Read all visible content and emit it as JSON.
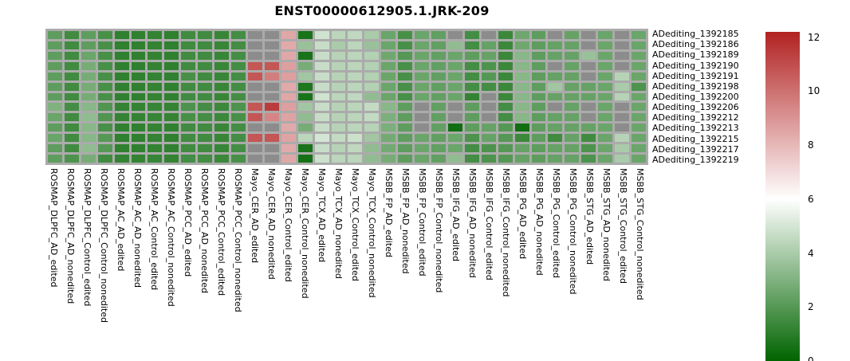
{
  "title": "ENST00000612905.1.JRK-209",
  "chart_data": {
    "type": "heatmap",
    "title": "ENST00000612905.1.JRK-209",
    "legend_position": "right",
    "grid": "cell-borders",
    "rows": [
      "ADediting_1392185",
      "ADediting_1392186",
      "ADediting_1392189",
      "ADediting_1392190",
      "ADediting_1392191",
      "ADediting_1392198",
      "ADediting_1392200",
      "ADediting_1392206",
      "ADediting_1392212",
      "ADediting_1392213",
      "ADediting_1392215",
      "ADediting_1392217",
      "ADediting_1392219"
    ],
    "columns": [
      "ROSMAP_DLPFC_AD_edited",
      "ROSMAP_DLPFC_AD_nonedited",
      "ROSMAP_DLPFC_Control_edited",
      "ROSMAP_DLPFC_Control_nonedited",
      "ROSMAP_AC_AD_edited",
      "ROSMAP_AC_AD_nonedited",
      "ROSMAP_AC_Control_edited",
      "ROSMAP_AC_Control_nonedited",
      "ROSMAP_PCC_AD_edited",
      "ROSMAP_PCC_AD_nonedited",
      "ROSMAP_PCC_Control_edited",
      "ROSMAP_PCC_Control_nonedited",
      "Mayo_CER_AD_edited",
      "Mayo_CER_AD_nonedited",
      "Mayo_CER_Control_edited",
      "Mayo_CER_Control_nonedited",
      "Mayo_TCX_AD_edited",
      "Mayo_TCX_AD_nonedited",
      "Mayo_TCX_Control_edited",
      "Mayo_TCX_Control_nonedited",
      "MSBB_FP_AD_edited",
      "MSBB_FP_AD_nonedited",
      "MSBB_FP_Control_edited",
      "MSBB_FP_Control_nonedited",
      "MSBB_IFG_AD_edited",
      "MSBB_IFG_AD_nonedited",
      "MSBB_IFG_Control_edited",
      "MSBB_IFG_Control_nonedited",
      "MSBB_PG_AD_edited",
      "MSBB_PG_AD_nonedited",
      "MSBB_PG_Control_edited",
      "MSBB_PG_Control_nonedited",
      "MSBB_STG_AD_edited",
      "MSBB_STG_AD_nonedited",
      "MSBB_STG_Control_edited",
      "MSBB_STG_Control_nonedited"
    ],
    "values": [
      [
        2.2,
        1.5,
        2.2,
        1.7,
        1.1,
        1.1,
        1.2,
        1.1,
        1.5,
        1.5,
        1.3,
        1.6,
        null,
        null,
        8.4,
        0.6,
        4.9,
        4.4,
        4.5,
        4.0,
        2.5,
        1.7,
        2.5,
        2.3,
        null,
        1.6,
        null,
        1.4,
        2.6,
        2.2,
        null,
        2.4,
        null,
        2.5,
        null,
        2.5
      ],
      [
        2.2,
        1.5,
        2.2,
        1.7,
        1.1,
        1.1,
        1.2,
        1.1,
        1.5,
        1.5,
        1.3,
        1.6,
        null,
        null,
        8.3,
        3.6,
        4.7,
        4.0,
        4.4,
        3.6,
        2.5,
        1.7,
        2.5,
        2.3,
        3.4,
        1.6,
        2.4,
        1.4,
        2.6,
        2.2,
        2.4,
        2.4,
        null,
        2.5,
        null,
        2.5
      ],
      [
        2.2,
        1.5,
        2.5,
        1.7,
        1.1,
        1.1,
        1.2,
        1.1,
        1.5,
        1.5,
        1.3,
        1.6,
        null,
        null,
        8.4,
        0.6,
        4.7,
        4.3,
        4.4,
        4.2,
        2.6,
        2.0,
        2.5,
        2.3,
        2.5,
        2.2,
        2.4,
        1.4,
        3.2,
        2.2,
        2.4,
        2.4,
        3.6,
        2.5,
        null,
        2.5
      ],
      [
        2.2,
        1.5,
        2.8,
        1.7,
        1.1,
        1.1,
        1.2,
        1.1,
        1.5,
        1.5,
        1.3,
        1.6,
        10.6,
        10.6,
        8.6,
        2.8,
        4.7,
        4.3,
        4.4,
        4.2,
        2.5,
        1.7,
        2.5,
        2.3,
        2.5,
        1.6,
        1.8,
        1.4,
        3.2,
        2.2,
        null,
        2.4,
        null,
        2.5,
        null,
        2.5
      ],
      [
        2.2,
        1.5,
        2.8,
        1.7,
        1.1,
        1.1,
        1.2,
        1.1,
        1.7,
        1.5,
        1.3,
        1.6,
        10.6,
        9.5,
        8.6,
        3.8,
        4.7,
        4.3,
        4.4,
        4.2,
        2.5,
        1.7,
        2.5,
        2.3,
        2.5,
        1.6,
        2.0,
        1.4,
        3.2,
        2.2,
        2.4,
        2.4,
        null,
        2.5,
        4.3,
        2.5
      ],
      [
        2.2,
        1.5,
        2.8,
        1.7,
        1.1,
        1.1,
        1.2,
        1.1,
        1.5,
        1.5,
        1.3,
        1.6,
        null,
        null,
        8.3,
        0.7,
        4.7,
        4.3,
        4.4,
        4.2,
        2.5,
        1.7,
        2.5,
        2.3,
        2.5,
        1.6,
        1.6,
        1.4,
        3.2,
        2.2,
        3.8,
        2.4,
        2.4,
        2.5,
        4.0,
        1.8
      ],
      [
        2.2,
        1.5,
        2.8,
        1.7,
        1.1,
        1.1,
        1.2,
        1.1,
        1.5,
        1.5,
        1.3,
        1.6,
        null,
        null,
        8.4,
        0.6,
        4.9,
        4.4,
        4.5,
        3.4,
        2.5,
        1.7,
        2.5,
        2.3,
        2.5,
        1.2,
        null,
        1.4,
        3.2,
        2.2,
        2.4,
        2.4,
        2.4,
        2.5,
        4.3,
        2.5
      ],
      [
        3.0,
        1.6,
        3.2,
        1.9,
        1.2,
        1.2,
        1.3,
        1.2,
        1.8,
        1.6,
        1.4,
        1.8,
        10.6,
        11.3,
        8.6,
        3.8,
        4.7,
        4.3,
        4.4,
        4.6,
        3.2,
        2.2,
        null,
        2.3,
        null,
        2.2,
        null,
        1.6,
        3.2,
        2.2,
        null,
        2.4,
        null,
        2.5,
        null,
        2.5
      ],
      [
        2.5,
        1.5,
        3.4,
        1.9,
        1.2,
        1.2,
        1.3,
        1.2,
        1.7,
        1.6,
        1.4,
        1.7,
        10.6,
        9.3,
        8.5,
        3.4,
        4.7,
        4.3,
        4.4,
        4.6,
        2.9,
        2.2,
        null,
        2.3,
        null,
        2.2,
        null,
        1.6,
        3.2,
        2.2,
        2.4,
        2.4,
        null,
        2.5,
        null,
        2.5
      ],
      [
        2.2,
        1.5,
        3.2,
        1.7,
        1.1,
        1.1,
        1.2,
        1.1,
        1.5,
        1.5,
        1.3,
        1.6,
        null,
        null,
        8.3,
        2.8,
        4.7,
        4.3,
        4.4,
        4.3,
        2.9,
        2.2,
        null,
        2.3,
        0.4,
        2.2,
        2.4,
        2.0,
        0.4,
        2.2,
        2.4,
        2.4,
        2.4,
        2.5,
        null,
        2.5
      ],
      [
        2.5,
        1.5,
        3.2,
        2.0,
        1.1,
        1.1,
        1.2,
        1.1,
        1.5,
        1.5,
        1.3,
        1.6,
        10.6,
        10.6,
        8.5,
        4.4,
        5.0,
        4.6,
        4.8,
        3.8,
        2.7,
        2.2,
        2.5,
        2.3,
        2.5,
        1.8,
        2.4,
        2.0,
        1.4,
        2.2,
        1.5,
        2.4,
        1.5,
        2.5,
        4.3,
        2.5
      ],
      [
        2.2,
        1.5,
        3.4,
        2.0,
        1.1,
        1.1,
        1.2,
        1.1,
        1.5,
        1.5,
        1.3,
        1.6,
        null,
        null,
        8.3,
        0.6,
        4.7,
        4.3,
        4.5,
        3.4,
        2.7,
        2.2,
        2.5,
        2.3,
        2.5,
        1.6,
        1.8,
        2.0,
        2.4,
        2.2,
        2.4,
        2.4,
        1.8,
        2.5,
        4.0,
        2.5
      ],
      [
        2.2,
        1.8,
        2.8,
        1.5,
        1.2,
        1.2,
        1.3,
        1.2,
        1.6,
        1.6,
        1.4,
        1.7,
        null,
        null,
        8.4,
        0.5,
        4.8,
        4.4,
        4.4,
        3.4,
        2.8,
        2.2,
        2.5,
        2.3,
        3.4,
        1.6,
        1.8,
        2.0,
        2.4,
        2.2,
        2.4,
        2.4,
        1.8,
        2.5,
        4.0,
        2.5
      ]
    ],
    "colormap": {
      "low": "#006400",
      "mid": "#ffffff",
      "high": "#b22222",
      "na_color": "#8c8c8c",
      "border_color": "#ababab",
      "domain": [
        0,
        6,
        12
      ]
    },
    "colorbar": {
      "vmin": 0,
      "vmax": 12.2,
      "tick_values": [
        12,
        10,
        8,
        6,
        4,
        2,
        0
      ],
      "tick_labels": [
        "12",
        "10",
        "8",
        "6",
        "4",
        "2",
        "0"
      ]
    }
  }
}
